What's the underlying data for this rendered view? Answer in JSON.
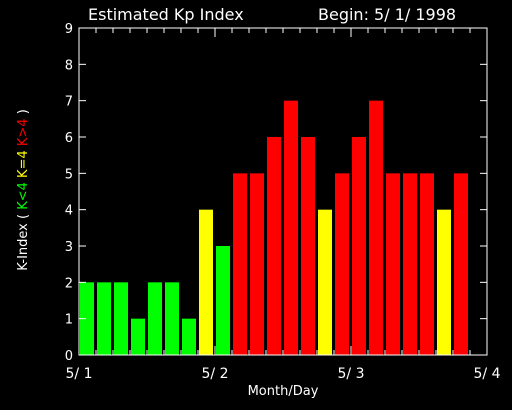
{
  "chart_data": {
    "type": "bar",
    "title": "Estimated Kp Index",
    "begin_label": "Begin: 5/ 1/ 1998",
    "xlabel": "Month/Day",
    "ylabel_parts": [
      {
        "text": "K-Index",
        "color": "#ffffff"
      },
      {
        "text": "(",
        "color": "#ffffff"
      },
      {
        "text": "K<4",
        "color": "#00ff00"
      },
      {
        "text": "K=4",
        "color": "#ffff00"
      },
      {
        "text": "K>4",
        "color": "#ff0000"
      },
      {
        "text": ")",
        "color": "#ffffff"
      }
    ],
    "ylim": [
      0,
      9
    ],
    "yticks": [
      0,
      1,
      2,
      3,
      4,
      5,
      6,
      7,
      8,
      9
    ],
    "xlim": [
      0,
      3
    ],
    "xtick_labels": [
      "5/ 1",
      "5/ 2",
      "5/ 3",
      "5/ 4"
    ],
    "bins_per_day": 8,
    "values": [
      2,
      2,
      2,
      1,
      2,
      2,
      1,
      4,
      3,
      5,
      5,
      6,
      7,
      6,
      4,
      5,
      6,
      7,
      5,
      5,
      5,
      4,
      5
    ],
    "colors": {
      "low": "#00ff00",
      "equal": "#ffff00",
      "high": "#ff0000"
    }
  }
}
